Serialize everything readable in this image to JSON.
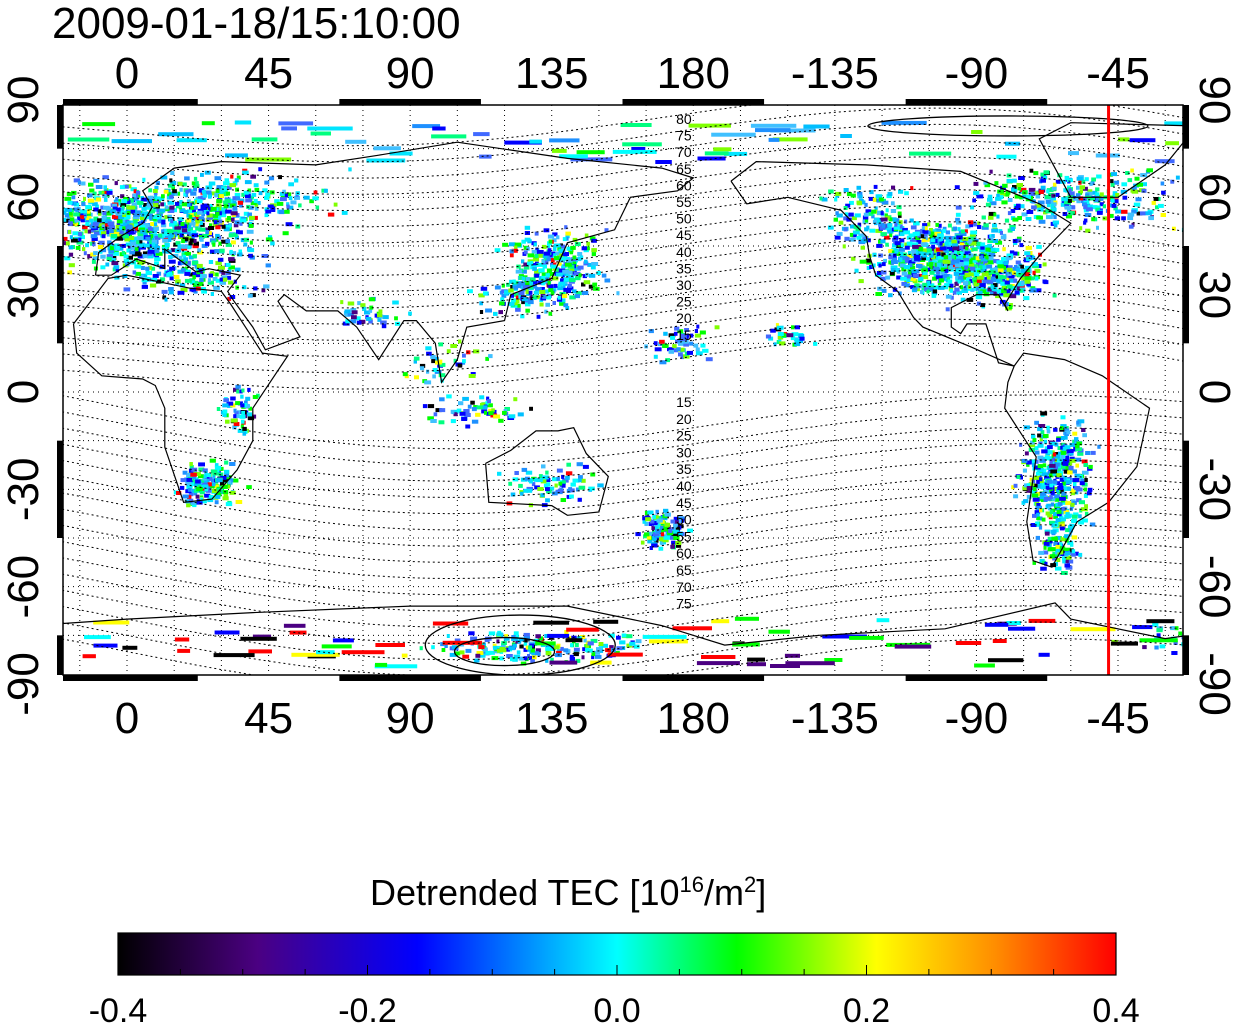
{
  "title": "2009-01-18/15:10:00",
  "map": {
    "top_axis_ticks": [
      "0",
      "45",
      "90",
      "135",
      "180",
      "-135",
      "-90",
      "-45"
    ],
    "bottom_axis_ticks": [
      "0",
      "45",
      "90",
      "135",
      "180",
      "-135",
      "-90",
      "-45"
    ],
    "left_axis_ticks": [
      "90",
      "60",
      "30",
      "0",
      "-30",
      "-60",
      "-90"
    ],
    "right_axis_ticks": [
      "90",
      "60",
      "30",
      "0",
      "-30",
      "-60",
      "-90"
    ],
    "contour_labels_north": [
      "80",
      "75",
      "70",
      "65",
      "60",
      "55",
      "50",
      "45",
      "40",
      "35",
      "30",
      "25",
      "20",
      "15"
    ],
    "contour_labels_south": [
      "15",
      "20",
      "25",
      "30",
      "35",
      "40",
      "45",
      "50",
      "55",
      "60",
      "65",
      "70",
      "75"
    ],
    "terminator_longitude": -48
  },
  "colorbar": {
    "title_prefix": "Detrended TEC  [10",
    "title_exp1": "16",
    "title_mid": "/m",
    "title_exp2": "2",
    "title_suffix": "]",
    "tick_labels": [
      "-0.4",
      "-0.2",
      "0.0",
      "0.2",
      "0.4"
    ],
    "range": [
      -0.4,
      0.4
    ],
    "colors": [
      "#000000",
      "#4b0082",
      "#0000ff",
      "#00ffff",
      "#00ff00",
      "#ffff00",
      "#ff0000"
    ]
  }
}
